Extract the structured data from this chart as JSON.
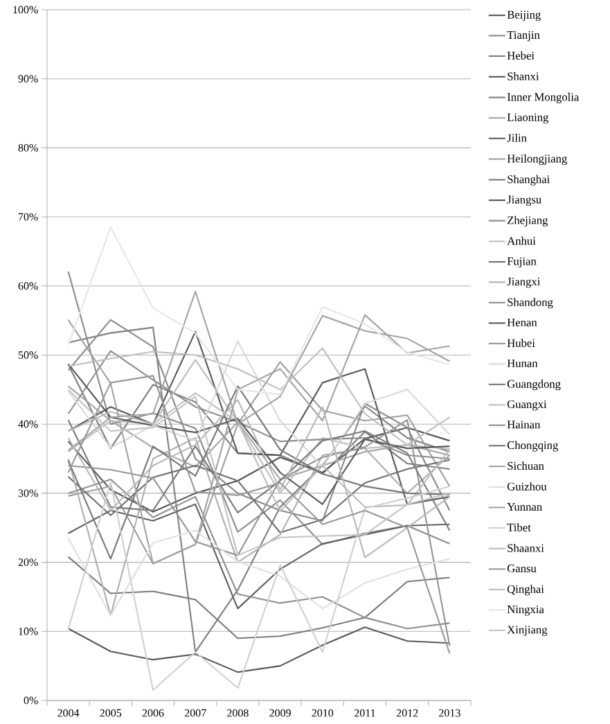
{
  "chart_data": {
    "type": "line",
    "categories": [
      "2004",
      "2005",
      "2006",
      "2007",
      "2008",
      "2009",
      "2010",
      "2011",
      "2012",
      "2013"
    ],
    "ylim": [
      0,
      100
    ],
    "yticks": [
      {
        "value": 0,
        "label": "0%"
      },
      {
        "value": 10,
        "label": "10%"
      },
      {
        "value": 20,
        "label": "20%"
      },
      {
        "value": 30,
        "label": "30%"
      },
      {
        "value": 40,
        "label": "40%"
      },
      {
        "value": 50,
        "label": "50%"
      },
      {
        "value": 60,
        "label": "60%"
      },
      {
        "value": 70,
        "label": "70%"
      },
      {
        "value": 80,
        "label": "80%"
      },
      {
        "value": 90,
        "label": "90%"
      },
      {
        "value": 100,
        "label": "100%"
      }
    ],
    "grid": "y",
    "legend": "right",
    "series": [
      {
        "name": "Beijing",
        "color": "#595959",
        "values": [
          10.4,
          7.1,
          5.9,
          6.7,
          4.1,
          5.0,
          8.0,
          10.6,
          8.6,
          8.3
        ]
      },
      {
        "name": "Tianjin",
        "color": "#8c8c8c",
        "values": [
          62.1,
          40.0,
          41.6,
          39.4,
          24.4,
          29.0,
          22.6,
          24.2,
          25.3,
          22.7
        ]
      },
      {
        "name": "Hebei",
        "color": "#7f7f7f",
        "values": [
          48.6,
          36.5,
          45.7,
          43.2,
          35.8,
          35.5,
          32.8,
          38.9,
          34.3,
          33.5
        ]
      },
      {
        "name": "Shanxi",
        "color": "#555555",
        "values": [
          37.5,
          30.5,
          27.3,
          30.0,
          31.8,
          35.2,
          33.0,
          37.9,
          39.5,
          37.6
        ]
      },
      {
        "name": "Inner Mongolia",
        "color": "#808080",
        "values": [
          51.8,
          53.2,
          54.0,
          7.0,
          16.0,
          28.0,
          34.0,
          42.6,
          38.0,
          36.0
        ]
      },
      {
        "name": "Liaoning",
        "color": "#a6a6a6",
        "values": [
          45.5,
          40.5,
          36.6,
          33.8,
          40.3,
          32.0,
          34.0,
          36.0,
          37.0,
          35.5
        ]
      },
      {
        "name": "Jilin",
        "color": "#606060",
        "values": [
          24.2,
          27.5,
          26.0,
          28.4,
          13.3,
          19.0,
          22.7,
          24.0,
          25.3,
          25.5
        ]
      },
      {
        "name": "Heilongjiang",
        "color": "#a0a0a0",
        "values": [
          29.6,
          31.0,
          19.8,
          22.6,
          40.0,
          49.0,
          42.0,
          40.5,
          41.3,
          31.0
        ]
      },
      {
        "name": "Shanghai",
        "color": "#7a7a7a",
        "values": [
          20.8,
          15.5,
          15.8,
          14.6,
          9.0,
          9.3,
          10.5,
          12.0,
          17.2,
          17.8
        ]
      },
      {
        "name": "Jiangsu",
        "color": "#5a5a5a",
        "values": [
          39.0,
          42.5,
          40.0,
          53.4,
          35.8,
          35.5,
          46.0,
          48.0,
          28.4,
          29.5
        ]
      },
      {
        "name": "Zhejiang",
        "color": "#8a8a8a",
        "values": [
          47.8,
          55.1,
          51.2,
          35.0,
          30.0,
          27.5,
          26.0,
          43.0,
          39.5,
          27.5
        ]
      },
      {
        "name": "Anhui",
        "color": "#c0c0c0",
        "values": [
          36.0,
          40.5,
          40.0,
          44.5,
          40.3,
          30.0,
          38.0,
          36.5,
          37.0,
          36.4
        ]
      },
      {
        "name": "Fujian",
        "color": "#6e6e6e",
        "values": [
          32.4,
          26.8,
          32.3,
          34.0,
          31.8,
          24.3,
          26.2,
          31.5,
          33.5,
          34.8
        ]
      },
      {
        "name": "Jiangxi",
        "color": "#b0b0b0",
        "values": [
          35.0,
          12.3,
          35.0,
          38.0,
          20.0,
          24.0,
          35.5,
          36.5,
          30.0,
          35.5
        ]
      },
      {
        "name": "Shandong",
        "color": "#8e8e8e",
        "values": [
          41.5,
          50.6,
          46.4,
          42.5,
          40.3,
          37.5,
          37.8,
          38.0,
          35.5,
          35.0
        ]
      },
      {
        "name": "Henan",
        "color": "#595959",
        "values": [
          48.7,
          41.0,
          39.8,
          38.8,
          40.8,
          33.0,
          28.4,
          37.8,
          36.5,
          36.8
        ]
      },
      {
        "name": "Hubei",
        "color": "#959595",
        "values": [
          34.0,
          33.4,
          32.2,
          23.0,
          21.0,
          32.0,
          35.2,
          36.7,
          40.6,
          7.9
        ]
      },
      {
        "name": "Hunan",
        "color": "#d9d9d9",
        "values": [
          44.8,
          36.6,
          39.8,
          37.6,
          52.0,
          40.5,
          33.8,
          43.0,
          45.0,
          38.5
        ]
      },
      {
        "name": "Guangdong",
        "color": "#7c7c7c",
        "values": [
          40.6,
          28.0,
          27.5,
          36.8,
          27.2,
          31.8,
          37.6,
          39.0,
          35.8,
          24.6
        ]
      },
      {
        "name": "Guangxi",
        "color": "#bdbdbd",
        "values": [
          39.0,
          41.8,
          40.0,
          49.3,
          40.3,
          27.4,
          34.0,
          28.0,
          28.3,
          36.4
        ]
      },
      {
        "name": "Hainan",
        "color": "#8f8f8f",
        "values": [
          30.0,
          32.0,
          26.5,
          29.5,
          15.4,
          14.1,
          15.0,
          12.0,
          10.4,
          11.2
        ]
      },
      {
        "name": "Chongqing",
        "color": "#777777",
        "values": [
          34.7,
          20.5,
          36.8,
          32.5,
          45.5,
          36.3,
          32.8,
          31.0,
          30.0,
          29.8
        ]
      },
      {
        "name": "Sichuan",
        "color": "#a3a3a3",
        "values": [
          55.1,
          45.9,
          19.8,
          22.6,
          45.0,
          48.0,
          40.5,
          55.8,
          50.3,
          51.3
        ]
      },
      {
        "name": "Guizhou",
        "color": "#e0e0e0",
        "values": [
          23.5,
          12.3,
          22.8,
          24.6,
          20.1,
          18.0,
          13.3,
          17.0,
          19.0,
          20.5
        ]
      },
      {
        "name": "Yunnan",
        "color": "#a3a3a3",
        "values": [
          36.2,
          41.0,
          41.5,
          59.2,
          40.0,
          44.0,
          55.7,
          53.5,
          52.4,
          49.1
        ]
      },
      {
        "name": "Tibet",
        "color": "#d0d0d0",
        "values": [
          10.3,
          31.6,
          1.5,
          7.0,
          1.8,
          19.6,
          7.0,
          27.8,
          29.3,
          31.0
        ]
      },
      {
        "name": "Shaanxi",
        "color": "#b8b8b8",
        "values": [
          38.0,
          27.5,
          34.0,
          37.0,
          43.5,
          30.5,
          42.5,
          20.7,
          25.0,
          29.5
        ]
      },
      {
        "name": "Gansu",
        "color": "#999999",
        "values": [
          33.0,
          46.0,
          47.0,
          30.2,
          29.7,
          31.5,
          25.5,
          27.5,
          25.0,
          6.8
        ]
      },
      {
        "name": "Qinghai",
        "color": "#bfbfbf",
        "values": [
          48.4,
          49.5,
          50.5,
          50.0,
          48.0,
          45.0,
          51.0,
          41.5,
          37.0,
          41.0
        ]
      },
      {
        "name": "Ningxia",
        "color": "#e6e6e6",
        "values": [
          51.5,
          68.5,
          56.8,
          53.2,
          45.0,
          44.3,
          57.0,
          54.5,
          50.4,
          48.6
        ]
      },
      {
        "name": "Xinjiang",
        "color": "#c4c4c4",
        "values": [
          45.0,
          39.0,
          39.5,
          44.0,
          21.0,
          23.6,
          23.8,
          24.0,
          28.4,
          30.0
        ]
      }
    ]
  }
}
